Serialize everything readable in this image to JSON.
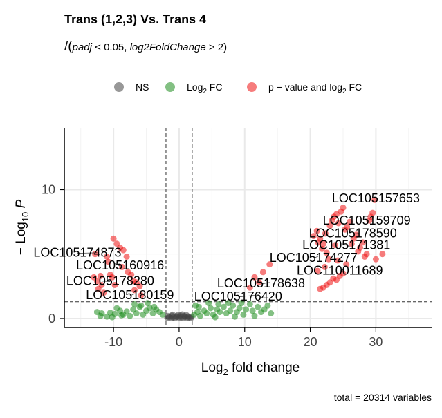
{
  "chart_data": {
    "type": "scatter",
    "title": "Trans (1,2,3) Vs. Trans 4",
    "subtitle": {
      "open": "/(",
      "term1": "padj",
      "op1": " < 0.05, ",
      "term2": "log2FoldChange",
      "op2": " > 2)"
    },
    "xlabel": {
      "pre": "Log",
      "sub": "2",
      "post": " fold change"
    },
    "ylabel": {
      "pre": "− Log",
      "sub": "10",
      "post": " P"
    },
    "caption": "total = 20314 variables",
    "xlim": [
      -17.5,
      38.5
    ],
    "ylim": [
      -0.7,
      14.8
    ],
    "x_ticks": [
      -10,
      0,
      10,
      20,
      30
    ],
    "x_tick_labels": [
      "-10",
      "0",
      "10",
      "20",
      "30"
    ],
    "y_ticks": [
      0,
      10
    ],
    "y_tick_labels": [
      "0",
      "10"
    ],
    "grid": true,
    "legend_position": "top",
    "thresholds": {
      "fold_change": [
        -2,
        2
      ],
      "y_cutoff": 1.3
    },
    "legend": [
      {
        "key": "ns",
        "pre": "NS",
        "sub": "",
        "post": "",
        "color": "#444444"
      },
      {
        "key": "fc",
        "pre": "Log",
        "sub": "2",
        "post": " FC",
        "color": "#1e8c1e"
      },
      {
        "key": "pfc",
        "pre": "p − value and log",
        "sub": "2",
        "post": " FC",
        "color": "#ee1111"
      }
    ],
    "series": [
      {
        "key": "ns",
        "points": [
          [
            -1.8,
            0.05
          ],
          [
            -1.5,
            0.1
          ],
          [
            -1.2,
            0.03
          ],
          [
            -0.9,
            0.08
          ],
          [
            -0.6,
            0.04
          ],
          [
            -0.3,
            0.12
          ],
          [
            0.0,
            0.06
          ],
          [
            0.3,
            0.09
          ],
          [
            0.6,
            0.02
          ],
          [
            0.9,
            0.11
          ],
          [
            1.2,
            0.05
          ],
          [
            1.5,
            0.08
          ],
          [
            1.8,
            0.03
          ],
          [
            -1.7,
            0.2
          ],
          [
            -1.1,
            0.22
          ],
          [
            -0.4,
            0.18
          ],
          [
            0.2,
            0.24
          ],
          [
            0.8,
            0.2
          ],
          [
            1.4,
            0.16
          ],
          [
            1.9,
            0.14
          ],
          [
            -1.0,
            0.3
          ],
          [
            0.5,
            0.32
          ],
          [
            -0.2,
            0.28
          ],
          [
            1.1,
            0.27
          ]
        ]
      },
      {
        "key": "fc",
        "points": [
          [
            -12.5,
            0.5
          ],
          [
            -11.8,
            0.4
          ],
          [
            -10.5,
            0.45
          ],
          [
            -10.2,
            0.1
          ],
          [
            -9.8,
            0.35
          ],
          [
            -9.0,
            0.6
          ],
          [
            -8.5,
            0.3
          ],
          [
            -8.0,
            0.55
          ],
          [
            -7.5,
            0.2
          ],
          [
            -7.0,
            0.7
          ],
          [
            -6.5,
            0.4
          ],
          [
            -6.0,
            0.9
          ],
          [
            -5.5,
            0.3
          ],
          [
            -5.0,
            0.6
          ],
          [
            -4.5,
            0.8
          ],
          [
            -4.0,
            0.4
          ],
          [
            -3.5,
            0.7
          ],
          [
            -3.0,
            0.5
          ],
          [
            -2.5,
            0.3
          ],
          [
            -6.8,
            1.1
          ],
          [
            -5.8,
            1.0
          ],
          [
            -4.8,
            1.2
          ],
          [
            -3.8,
            0.9
          ],
          [
            -9.5,
            0.8
          ],
          [
            -8.8,
            0.25
          ],
          [
            -11.0,
            0.15
          ],
          [
            -12.0,
            0.2
          ],
          [
            2.3,
            0.3
          ],
          [
            2.8,
            0.5
          ],
          [
            3.2,
            0.2
          ],
          [
            3.8,
            0.6
          ],
          [
            4.2,
            0.4
          ],
          [
            4.8,
            0.8
          ],
          [
            5.2,
            0.3
          ],
          [
            5.8,
            0.7
          ],
          [
            6.2,
            0.5
          ],
          [
            6.8,
            0.9
          ],
          [
            7.2,
            0.4
          ],
          [
            7.8,
            0.6
          ],
          [
            8.2,
            1.0
          ],
          [
            8.8,
            0.5
          ],
          [
            9.2,
            0.8
          ],
          [
            9.8,
            0.3
          ],
          [
            10.2,
            0.7
          ],
          [
            10.8,
            1.1
          ],
          [
            11.2,
            0.6
          ],
          [
            11.5,
            0.2
          ],
          [
            12.0,
            0.9
          ],
          [
            12.5,
            0.5
          ],
          [
            13.0,
            0.7
          ],
          [
            13.5,
            1.0
          ],
          [
            14.0,
            0.4
          ],
          [
            4.5,
            1.2
          ],
          [
            6.0,
            1.1
          ],
          [
            7.5,
            1.2
          ],
          [
            9.5,
            1.2
          ],
          [
            3.0,
            0.9
          ],
          [
            2.5,
            1.0
          ],
          [
            5.5,
            0.1
          ],
          [
            8.5,
            0.15
          ]
        ]
      },
      {
        "key": "pfc",
        "points": [
          [
            -13.0,
            3.2
          ],
          [
            -12.5,
            2.9
          ],
          [
            -12.0,
            3.3
          ],
          [
            -11.8,
            2.6
          ],
          [
            -12.3,
            2.3
          ],
          [
            -11.5,
            2.0
          ],
          [
            -10.5,
            3.4
          ],
          [
            -10.2,
            3.2
          ],
          [
            -10.0,
            6.2
          ],
          [
            -9.5,
            5.8
          ],
          [
            -9.0,
            5.5
          ],
          [
            -8.5,
            5.3
          ],
          [
            -8.0,
            4.8
          ],
          [
            -7.8,
            3.6
          ],
          [
            -7.3,
            3.4
          ],
          [
            -7.0,
            2.9
          ],
          [
            -6.5,
            2.8
          ],
          [
            -6.0,
            2.5
          ],
          [
            -11.0,
            4.8
          ],
          [
            -10.8,
            4.4
          ],
          [
            -12.8,
            5.0
          ],
          [
            -9.8,
            2.6
          ],
          [
            -8.7,
            4.0
          ],
          [
            -6.8,
            2.2
          ],
          [
            -5.8,
            1.8
          ],
          [
            11.5,
            3.2
          ],
          [
            12.8,
            3.6
          ],
          [
            13.8,
            4.2
          ],
          [
            10.8,
            2.4
          ],
          [
            12.2,
            2.8
          ],
          [
            20.5,
            6.4
          ],
          [
            21.0,
            6.8
          ],
          [
            21.2,
            5.9
          ],
          [
            21.5,
            6.2
          ],
          [
            21.8,
            5.4
          ],
          [
            22.0,
            5.8
          ],
          [
            22.3,
            6.6
          ],
          [
            22.5,
            5.1
          ],
          [
            22.8,
            4.6
          ],
          [
            23.0,
            7.2
          ],
          [
            23.3,
            7.6
          ],
          [
            23.6,
            7.9
          ],
          [
            24.0,
            8.1
          ],
          [
            24.3,
            7.4
          ],
          [
            24.7,
            8.3
          ],
          [
            25.0,
            8.6
          ],
          [
            25.3,
            6.9
          ],
          [
            25.6,
            7.1
          ],
          [
            26.0,
            7.5
          ],
          [
            26.3,
            5.8
          ],
          [
            26.6,
            6.2
          ],
          [
            27.0,
            6.5
          ],
          [
            27.3,
            5.2
          ],
          [
            27.6,
            5.5
          ],
          [
            28.0,
            5.9
          ],
          [
            28.3,
            4.8
          ],
          [
            28.6,
            5.0
          ],
          [
            29.0,
            7.6
          ],
          [
            29.2,
            7.9
          ],
          [
            29.5,
            8.2
          ],
          [
            29.8,
            9.2
          ],
          [
            30.0,
            4.6
          ],
          [
            31.0,
            5.0
          ],
          [
            22.0,
            2.4
          ],
          [
            22.5,
            2.6
          ],
          [
            23.0,
            2.8
          ],
          [
            23.5,
            3.1
          ],
          [
            24.0,
            3.0
          ],
          [
            24.5,
            3.3
          ],
          [
            25.0,
            3.5
          ],
          [
            21.5,
            2.3
          ],
          [
            24.2,
            4.5
          ],
          [
            23.8,
            5.7
          ],
          [
            22.2,
            4.0
          ],
          [
            21.1,
            3.7
          ],
          [
            25.5,
            4.2
          ]
        ]
      }
    ],
    "labels": [
      {
        "text": "LOC105157653",
        "x": 30.0,
        "y": 8.9,
        "lx": 30.0,
        "ly": 9.0,
        "anchor": "middle"
      },
      {
        "text": "LOC105159709",
        "x": 28.6,
        "y": 7.6,
        "lx": 28.6,
        "ly": 7.3,
        "anchor": "middle"
      },
      {
        "text": "LOC105178590",
        "x": 27.4,
        "y": 6.6,
        "lx": 26.5,
        "ly": 6.3,
        "anchor": "middle"
      },
      {
        "text": "LOC105171381",
        "x": 26.0,
        "y": 5.6,
        "lx": 25.5,
        "ly": 5.4,
        "anchor": "middle"
      },
      {
        "text": "LOC105174277",
        "x": 21.5,
        "y": 4.9,
        "lx": 20.5,
        "ly": 4.4,
        "anchor": "middle"
      },
      {
        "text": "LOC110011689",
        "x": 25.0,
        "y": 3.8,
        "lx": 24.5,
        "ly": 3.4,
        "anchor": "middle"
      },
      {
        "text": "LOC105178638",
        "x": 13.8,
        "y": 2.8,
        "lx": 12.5,
        "ly": 2.4,
        "anchor": "middle"
      },
      {
        "text": "LOC105176420",
        "x": 11.5,
        "y": 1.8,
        "lx": 9.0,
        "ly": 1.4,
        "anchor": "middle"
      },
      {
        "text": "LOC105174873",
        "x": -12.5,
        "y": 5.1,
        "lx": -15.5,
        "ly": 4.8,
        "anchor": "middle"
      },
      {
        "text": "LOC105160916",
        "x": -10.0,
        "y": 4.3,
        "lx": -9.0,
        "ly": 3.8,
        "anchor": "middle"
      },
      {
        "text": "LOC105178280",
        "x": -11.8,
        "y": 2.9,
        "lx": -10.5,
        "ly": 2.6,
        "anchor": "middle"
      },
      {
        "text": "LOC105180159",
        "x": -6.8,
        "y": 1.9,
        "lx": -7.5,
        "ly": 1.5,
        "anchor": "middle"
      }
    ]
  }
}
